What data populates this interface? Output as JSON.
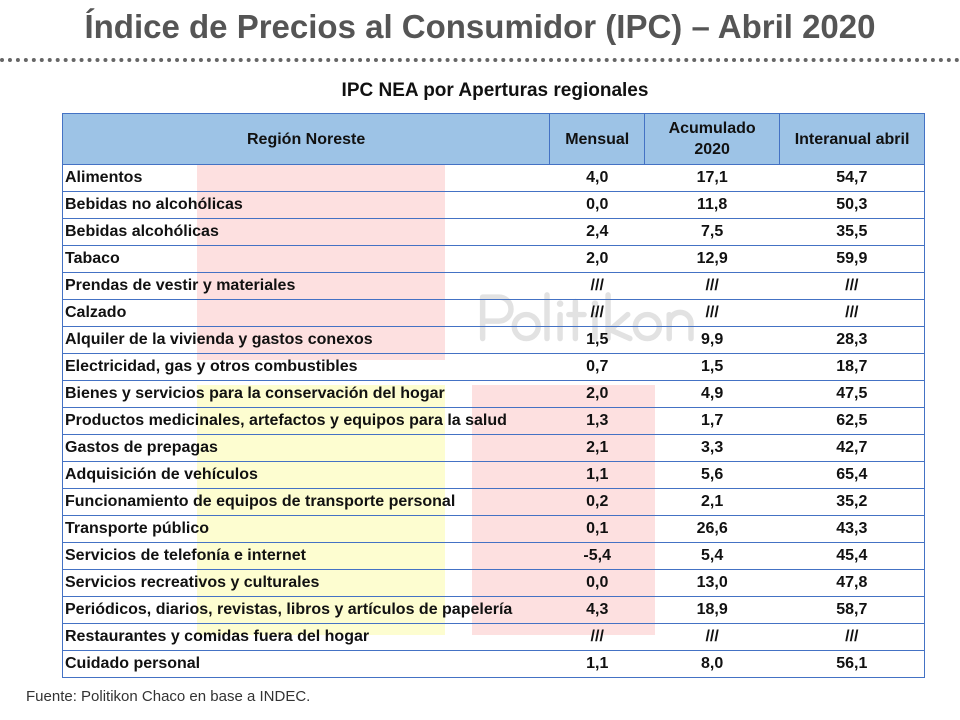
{
  "title": "Índice de Precios al Consumidor (IPC) – Abril 2020",
  "subtitle": "IPC NEA por Aperturas regionales",
  "watermark": "Politikon",
  "headers": [
    "Región Noreste",
    "Mensual",
    "Acumulado 2020",
    "Interanual abril"
  ],
  "rows": [
    [
      "Alimentos",
      "4,0",
      "17,1",
      "54,7"
    ],
    [
      "Bebidas no alcohólicas",
      "0,0",
      "11,8",
      "50,3"
    ],
    [
      "Bebidas alcohólicas",
      "2,4",
      "7,5",
      "35,5"
    ],
    [
      "Tabaco",
      "2,0",
      "12,9",
      "59,9"
    ],
    [
      "Prendas de vestir y materiales",
      "///",
      "///",
      "///"
    ],
    [
      "Calzado",
      "///",
      "///",
      "///"
    ],
    [
      "Alquiler de la vivienda y gastos conexos",
      "1,5",
      "9,9",
      "28,3"
    ],
    [
      "Electricidad, gas y otros combustibles",
      "0,7",
      "1,5",
      "18,7"
    ],
    [
      "Bienes y servicios para la conservación del hogar",
      "2,0",
      "4,9",
      "47,5"
    ],
    [
      "Productos medicinales, artefactos y equipos para la salud",
      "1,3",
      "1,7",
      "62,5"
    ],
    [
      "Gastos de prepagas",
      "2,1",
      "3,3",
      "42,7"
    ],
    [
      "Adquisición de vehículos",
      "1,1",
      "5,6",
      "65,4"
    ],
    [
      "Funcionamiento de equipos de transporte personal",
      "0,2",
      "2,1",
      "35,2"
    ],
    [
      "Transporte público",
      "0,1",
      "26,6",
      "43,3"
    ],
    [
      "Servicios  de telefonía e internet",
      "-5,4",
      "5,4",
      "45,4"
    ],
    [
      "Servicios recreativos y culturales",
      "0,0",
      "13,0",
      "47,8"
    ],
    [
      "Periódicos, diarios, revistas, libros y artículos de papelería",
      "4,3",
      "18,9",
      "58,7"
    ],
    [
      "Restaurantes y comidas fuera del hogar",
      "///",
      "///",
      "///"
    ],
    [
      "Cuidado personal",
      "1,1",
      "8,0",
      "56,1"
    ]
  ],
  "source_label": "Fuente",
  "source_text": ": Politikon Chaco en base a INDEC."
}
